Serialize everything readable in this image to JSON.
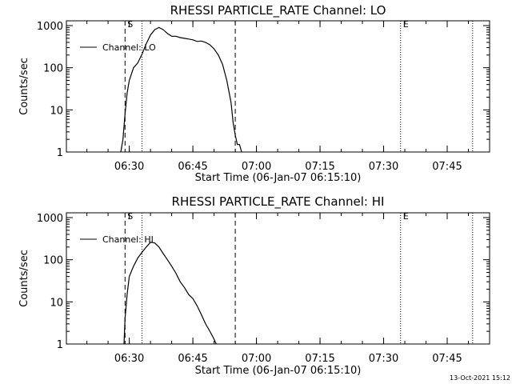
{
  "chart_data": [
    {
      "type": "line",
      "title": "RHESSI PARTICLE_RATE Channel: LO",
      "xlabel": "Start Time (06-Jan-07 06:15:10)",
      "ylabel": "Counts/sec",
      "yscale": "log",
      "ylim": [
        1,
        1000
      ],
      "xlim": [
        "06:15:10",
        "07:55:00"
      ],
      "x_ticks": [
        "06:30",
        "06:45",
        "07:00",
        "07:15",
        "07:30",
        "07:45"
      ],
      "y_ticks": [
        "1",
        "10",
        "100",
        "1000"
      ],
      "legend": {
        "placement": "top-left",
        "entries": [
          "Channel: LO"
        ]
      },
      "markers": [
        {
          "label": "S",
          "time": "06:29:00",
          "style": "dashed"
        },
        {
          "label": "",
          "time": "06:33:00",
          "style": "dotted"
        },
        {
          "label": "",
          "time": "06:55:00",
          "style": "dashed"
        },
        {
          "label": "E",
          "time": "07:34:00",
          "style": "dotted"
        },
        {
          "label": "",
          "time": "07:51:00",
          "style": "dotted"
        }
      ],
      "series": [
        {
          "name": "Channel: LO",
          "x": [
            "06:28:00",
            "06:28:30",
            "06:29:00",
            "06:29:30",
            "06:30:00",
            "06:30:30",
            "06:31:00",
            "06:32:00",
            "06:33:00",
            "06:34:00",
            "06:35:00",
            "06:36:00",
            "06:37:00",
            "06:38:00",
            "06:39:00",
            "06:40:00",
            "06:41:00",
            "06:42:00",
            "06:43:00",
            "06:44:00",
            "06:45:00",
            "06:46:00",
            "06:47:00",
            "06:48:00",
            "06:49:00",
            "06:50:00",
            "06:51:00",
            "06:52:00",
            "06:53:00",
            "06:54:00",
            "06:54:30",
            "06:55:00",
            "06:55:30",
            "06:56:00",
            "06:56:30"
          ],
          "y": [
            1,
            2,
            8,
            25,
            50,
            70,
            100,
            130,
            210,
            370,
            600,
            800,
            900,
            800,
            650,
            560,
            560,
            520,
            500,
            480,
            460,
            420,
            430,
            400,
            350,
            280,
            200,
            120,
            50,
            15,
            5,
            2.5,
            1.5,
            1.5,
            1
          ]
        }
      ]
    },
    {
      "type": "line",
      "title": "RHESSI PARTICLE_RATE Channel: HI",
      "xlabel": "Start Time (06-Jan-07 06:15:10)",
      "ylabel": "Counts/sec",
      "yscale": "log",
      "ylim": [
        1,
        1000
      ],
      "xlim": [
        "06:15:10",
        "07:55:00"
      ],
      "x_ticks": [
        "06:30",
        "06:45",
        "07:00",
        "07:15",
        "07:30",
        "07:45"
      ],
      "y_ticks": [
        "1",
        "10",
        "100",
        "1000"
      ],
      "legend": {
        "placement": "top-left",
        "entries": [
          "Channel: HI"
        ]
      },
      "markers": [
        {
          "label": "S",
          "time": "06:29:00",
          "style": "dashed"
        },
        {
          "label": "",
          "time": "06:33:00",
          "style": "dotted"
        },
        {
          "label": "",
          "time": "06:55:00",
          "style": "dashed"
        },
        {
          "label": "E",
          "time": "07:34:00",
          "style": "dotted"
        },
        {
          "label": "",
          "time": "07:51:00",
          "style": "dotted"
        }
      ],
      "series": [
        {
          "name": "Channel: HI",
          "x": [
            "06:28:45",
            "06:29:00",
            "06:29:30",
            "06:30:00",
            "06:31:00",
            "06:32:00",
            "06:33:00",
            "06:34:00",
            "06:35:00",
            "06:36:00",
            "06:37:00",
            "06:38:00",
            "06:39:00",
            "06:40:00",
            "06:41:00",
            "06:42:00",
            "06:43:00",
            "06:44:00",
            "06:45:00",
            "06:46:00",
            "06:47:00",
            "06:48:00",
            "06:49:00",
            "06:50:00",
            "06:50:30"
          ],
          "y": [
            1,
            4,
            15,
            40,
            70,
            110,
            150,
            200,
            260,
            250,
            200,
            140,
            100,
            70,
            48,
            30,
            22,
            15,
            12,
            8,
            5,
            3,
            2,
            1.3,
            1
          ]
        }
      ]
    }
  ],
  "timestamp": "13-Oct-2021 15:12"
}
